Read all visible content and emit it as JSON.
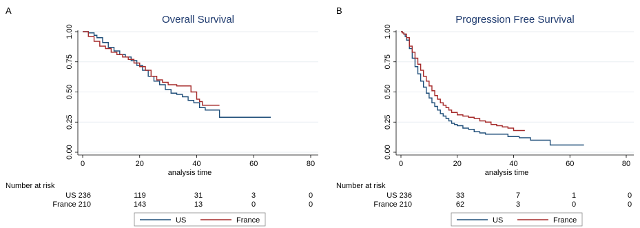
{
  "chart_data": [
    {
      "type": "line",
      "panel": "A",
      "title": "Overall Survival",
      "xlabel": "analysis time",
      "xlim": [
        0,
        80
      ],
      "ylim": [
        0,
        1
      ],
      "xticks": [
        "0",
        "20",
        "40",
        "60",
        "80"
      ],
      "yticks": [
        "0.00",
        "0.25",
        "0.50",
        "0.75",
        "1.00"
      ],
      "grid": true,
      "legend_position": "bottom",
      "series": [
        {
          "name": "US",
          "color": "#1f4e79",
          "x": [
            0,
            2,
            4,
            5,
            7,
            9,
            11,
            13,
            15,
            17,
            19,
            21,
            23,
            25,
            27,
            29,
            31,
            33,
            35,
            37,
            39,
            41,
            43,
            45,
            48,
            66
          ],
          "y": [
            1.0,
            0.99,
            0.97,
            0.95,
            0.91,
            0.87,
            0.84,
            0.81,
            0.79,
            0.76,
            0.72,
            0.68,
            0.63,
            0.59,
            0.56,
            0.52,
            0.49,
            0.48,
            0.46,
            0.43,
            0.41,
            0.37,
            0.35,
            0.35,
            0.29,
            0.29
          ]
        },
        {
          "name": "France",
          "color": "#a52a2a",
          "x": [
            0,
            2,
            4,
            6,
            8,
            10,
            12,
            14,
            16,
            18,
            20,
            22,
            24,
            26,
            28,
            30,
            33,
            36,
            38,
            39,
            40,
            41,
            42,
            48
          ],
          "y": [
            1.0,
            0.96,
            0.92,
            0.88,
            0.86,
            0.83,
            0.81,
            0.79,
            0.77,
            0.74,
            0.71,
            0.68,
            0.63,
            0.6,
            0.58,
            0.56,
            0.55,
            0.55,
            0.5,
            0.5,
            0.44,
            0.42,
            0.39,
            0.39
          ]
        }
      ],
      "risk_table": {
        "header": "Number at risk",
        "rows": [
          {
            "label": "US 236",
            "values": [
              "119",
              "31",
              "3",
              "0"
            ]
          },
          {
            "label": "France 210",
            "values": [
              "143",
              "13",
              "0",
              "0"
            ]
          }
        ]
      }
    },
    {
      "type": "line",
      "panel": "B",
      "title": "Progression Free Survival",
      "xlabel": "analysis time",
      "xlim": [
        0,
        80
      ],
      "ylim": [
        0,
        1
      ],
      "xticks": [
        "0",
        "20",
        "40",
        "60",
        "80"
      ],
      "yticks": [
        "0.00",
        "0.25",
        "0.50",
        "0.75",
        "1.00"
      ],
      "grid": true,
      "legend_position": "bottom",
      "series": [
        {
          "name": "US",
          "color": "#1f4e79",
          "x": [
            0,
            0.5,
            1,
            1.5,
            2,
            3,
            4,
            5,
            6,
            7,
            8,
            9,
            10,
            11,
            12,
            13,
            14,
            15,
            16,
            17,
            18,
            19,
            20,
            22,
            24,
            26,
            28,
            30,
            34,
            38,
            42,
            46,
            53,
            60,
            65
          ],
          "y": [
            1.0,
            0.99,
            0.98,
            0.96,
            0.93,
            0.86,
            0.78,
            0.71,
            0.65,
            0.59,
            0.54,
            0.49,
            0.45,
            0.41,
            0.38,
            0.35,
            0.32,
            0.3,
            0.28,
            0.26,
            0.24,
            0.23,
            0.22,
            0.2,
            0.19,
            0.17,
            0.16,
            0.15,
            0.15,
            0.13,
            0.12,
            0.1,
            0.06,
            0.06,
            0.06
          ]
        },
        {
          "name": "France",
          "color": "#a52a2a",
          "x": [
            0,
            0.5,
            1,
            2,
            3,
            4,
            5,
            6,
            7,
            8,
            9,
            10,
            11,
            12,
            13,
            14,
            15,
            16,
            17,
            18,
            20,
            22,
            24,
            26,
            28,
            30,
            32,
            34,
            36,
            38,
            40,
            44
          ],
          "y": [
            1.0,
            0.99,
            0.98,
            0.95,
            0.88,
            0.83,
            0.78,
            0.73,
            0.68,
            0.63,
            0.59,
            0.55,
            0.51,
            0.47,
            0.44,
            0.41,
            0.39,
            0.37,
            0.35,
            0.33,
            0.31,
            0.3,
            0.29,
            0.28,
            0.26,
            0.25,
            0.23,
            0.22,
            0.21,
            0.2,
            0.18,
            0.18
          ]
        }
      ],
      "risk_table": {
        "header": "Number at risk",
        "rows": [
          {
            "label": "US 236",
            "values": [
              "33",
              "7",
              "1",
              "0"
            ]
          },
          {
            "label": "France 210",
            "values": [
              "62",
              "3",
              "0",
              "0"
            ]
          }
        ]
      }
    }
  ]
}
